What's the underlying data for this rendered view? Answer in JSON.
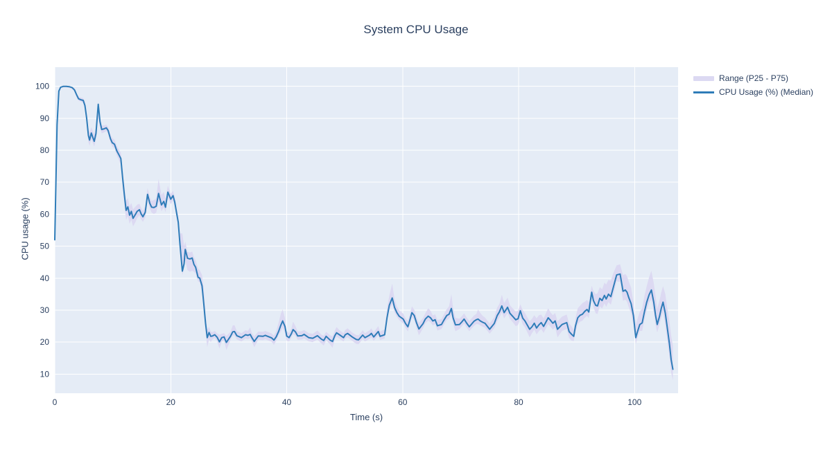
{
  "title": "System CPU Usage",
  "colors": {
    "line": "#2e7cb8",
    "band": "#dcd9f2",
    "plot_bg": "#e5ecf6",
    "grid": "#ffffff",
    "text": "#2a3f5f",
    "paper_bg": "#ffffff"
  },
  "legend": {
    "items": [
      {
        "label": "Range (P25 - P75)",
        "swatch": "band"
      },
      {
        "label": "CPU Usage (%) (Median)",
        "swatch": "line"
      }
    ]
  },
  "chart_data": {
    "type": "line",
    "title": "System CPU Usage",
    "xlabel": "Time (s)",
    "ylabel": "CPU usage (%)",
    "x_range": [
      0,
      107.5
    ],
    "y_range": [
      4,
      106
    ],
    "x_ticks": [
      0,
      20,
      40,
      60,
      80,
      100
    ],
    "y_ticks": [
      10,
      20,
      30,
      40,
      50,
      60,
      70,
      80,
      90,
      100
    ],
    "grid": true,
    "legend_position": "right-top-outside",
    "series": [
      {
        "name": "CPU Usage (%) (Median)",
        "x": [
          0,
          0.4,
          0.7,
          1,
          1.5,
          2,
          2.5,
          3,
          3.4,
          3.8,
          4.1,
          4.5,
          4.9,
          5.2,
          5.5,
          5.8,
          6,
          6.3,
          6.5,
          6.8,
          7.1,
          7.5,
          7.8,
          8.1,
          8.5,
          8.9,
          9.2,
          9.6,
          9.9,
          10.3,
          10.7,
          11,
          11.4,
          11.7,
          12,
          12.3,
          12.6,
          12.9,
          13.2,
          13.5,
          13.9,
          14.2,
          14.6,
          14.9,
          15.2,
          15.6,
          16,
          16.4,
          16.7,
          17.1,
          17.5,
          17.9,
          18.4,
          18.8,
          19.1,
          19.5,
          20,
          20.4,
          20.7,
          21,
          21.3,
          21.6,
          22,
          22.3,
          22.5,
          22.9,
          23.3,
          23.7,
          24,
          24.3,
          24.7,
          25,
          25.4,
          25.7,
          26,
          26.3,
          26.6,
          26.9,
          27.2,
          27.6,
          28,
          28.4,
          28.8,
          29.2,
          29.6,
          30.3,
          30.7,
          31,
          31.4,
          32.2,
          32.9,
          33.3,
          33.7,
          34,
          34.4,
          35.1,
          35.9,
          36.3,
          37.4,
          37.8,
          38.2,
          38.6,
          39,
          39.3,
          39.7,
          40,
          40.4,
          40.8,
          41.1,
          41.5,
          41.9,
          42.6,
          43,
          43.8,
          44.5,
          45.3,
          46,
          46.4,
          46.8,
          47.5,
          47.9,
          48.3,
          48.6,
          49,
          49.8,
          50.1,
          50.5,
          51.3,
          52,
          52.4,
          53.1,
          53.5,
          54.3,
          54.6,
          55,
          55.8,
          56.1,
          56.9,
          57.3,
          57.7,
          58.2,
          58.6,
          59,
          59.4,
          60.1,
          60.5,
          60.9,
          61.2,
          61.6,
          62,
          62.4,
          62.8,
          63.5,
          63.9,
          64.4,
          64.8,
          65.2,
          65.6,
          66,
          66.7,
          67.1,
          67.6,
          68,
          68.4,
          68.7,
          69.1,
          69.8,
          70.2,
          70.6,
          71,
          71.5,
          72.3,
          72.7,
          73,
          73.4,
          73.8,
          74.2,
          75,
          75.8,
          76.3,
          76.7,
          77.1,
          77.5,
          78.1,
          78.5,
          79,
          79.5,
          79.9,
          80.3,
          80.7,
          81.1,
          81.9,
          82.3,
          82.7,
          83.1,
          83.5,
          83.9,
          84.3,
          85.1,
          85.5,
          85.9,
          86.3,
          86.7,
          87.5,
          88.3,
          88.7,
          89.1,
          89.5,
          89.8,
          90.2,
          90.6,
          91,
          91.4,
          91.8,
          92.1,
          92.6,
          92.9,
          93.3,
          93.6,
          94,
          94.4,
          94.8,
          95.1,
          95.5,
          95.9,
          96.3,
          96.9,
          97.5,
          98,
          98.4,
          98.7,
          99,
          99.4,
          99.8,
          100.2,
          100.5,
          100.9,
          101.3,
          101.7,
          102.1,
          102.5,
          102.9,
          103.3,
          103.6,
          103.9,
          104.3,
          104.6,
          104.9,
          105.3,
          105.6,
          106,
          106.3,
          106.6
        ],
        "y": [
          52,
          88,
          98.5,
          99.7,
          100,
          100,
          99.9,
          99.6,
          98.9,
          97.2,
          96.1,
          95.8,
          95.6,
          94,
          90,
          84.6,
          83.2,
          85.4,
          84.3,
          82.8,
          85.2,
          94.4,
          89,
          86.5,
          86.7,
          87,
          86.2,
          83.6,
          82.4,
          81.9,
          79.8,
          78.8,
          77.4,
          71.5,
          66,
          61.2,
          62.3,
          59.7,
          60.9,
          58.7,
          59.9,
          60.9,
          61.4,
          60.1,
          59.2,
          60.6,
          66.2,
          63.4,
          62.2,
          62.1,
          62.5,
          66.5,
          62.9,
          64,
          62.2,
          66.9,
          64.7,
          65.8,
          63.7,
          60.5,
          57.5,
          50.5,
          42.2,
          44.5,
          49,
          46.2,
          46,
          46.3,
          44.3,
          43.4,
          40.3,
          40,
          37.6,
          32,
          26,
          21.4,
          23,
          21.8,
          21.9,
          22.3,
          21.5,
          20.1,
          21.4,
          21.6,
          19.9,
          21.8,
          23.2,
          23.3,
          22,
          21.4,
          22.3,
          22.1,
          22.4,
          21.4,
          20.2,
          21.9,
          21.8,
          22.1,
          21.3,
          20.6,
          21.7,
          23.3,
          25.3,
          26.6,
          24.9,
          21.9,
          21.4,
          22.6,
          23.9,
          23.2,
          21.9,
          22,
          22.4,
          21.4,
          21.2,
          22,
          20.9,
          20.5,
          21.8,
          20.6,
          20.2,
          22,
          22.9,
          22.4,
          21.4,
          22.3,
          22.7,
          21.6,
          20.8,
          20.7,
          22.2,
          21.4,
          22.2,
          22.7,
          21.6,
          23.3,
          21.8,
          22.3,
          27.6,
          31.5,
          33.8,
          30.8,
          29.2,
          28.1,
          27.2,
          25.8,
          24.8,
          26.6,
          29.2,
          28.3,
          26,
          24.1,
          25.7,
          27.2,
          28.1,
          27.6,
          26.6,
          27,
          25.1,
          25.5,
          26.8,
          28.3,
          28.7,
          30.5,
          27.6,
          25.4,
          25.5,
          26.3,
          27.2,
          26,
          24.8,
          26.5,
          27,
          27.2,
          26.6,
          26.2,
          25.9,
          24,
          25.8,
          28.3,
          29.5,
          31.3,
          29.2,
          30.9,
          29,
          28,
          27,
          27.3,
          29.8,
          27.5,
          26.6,
          24,
          24.8,
          25.9,
          24.4,
          25.4,
          26.1,
          24.9,
          27.6,
          26.8,
          25.9,
          26.6,
          24,
          25.5,
          26.1,
          23.3,
          22.5,
          21.8,
          25,
          27.6,
          28.4,
          28.7,
          29.6,
          30.2,
          29.4,
          35.6,
          33,
          31.5,
          31.3,
          33.7,
          33,
          34.6,
          33.5,
          35,
          34.2,
          36.9,
          41,
          41.3,
          35.9,
          36.3,
          35.6,
          33.9,
          32,
          28.3,
          21.4,
          23.3,
          25.5,
          26,
          29.5,
          32.5,
          34.8,
          36.3,
          32.5,
          28.5,
          25.5,
          28,
          30.5,
          32.5,
          29,
          25,
          19.5,
          14.5,
          11.5
        ]
      }
    ],
    "band": {
      "name": "Range (P25 - P75)",
      "x_ref": "series.0.x",
      "p25": [
        51.5,
        87,
        98,
        99.4,
        99.7,
        99.7,
        99.5,
        99.2,
        98.3,
        96.4,
        95.5,
        95.2,
        94.8,
        92.6,
        88,
        82.6,
        81.4,
        83.6,
        82.6,
        81.2,
        83.4,
        90.5,
        87,
        85.3,
        85.6,
        86,
        85.2,
        82.4,
        81.2,
        80.6,
        78.4,
        77.2,
        75.6,
        68.5,
        63,
        58.2,
        59.5,
        57,
        58.2,
        56.2,
        57.5,
        58.8,
        59.6,
        58.4,
        57.6,
        59,
        64.4,
        61.8,
        60.5,
        60.1,
        60.5,
        64,
        60.9,
        62.2,
        60.6,
        65,
        63.2,
        64.3,
        62.2,
        59,
        55.8,
        48.8,
        41,
        43,
        45.5,
        42.5,
        42,
        42.3,
        42,
        41.4,
        39,
        38.7,
        35.6,
        29.5,
        23.5,
        18.4,
        20.8,
        20,
        20.9,
        21.3,
        20.3,
        17.9,
        20.2,
        20.4,
        17.5,
        20.6,
        22,
        22.1,
        20.8,
        20.2,
        21.1,
        20.9,
        21.2,
        20.2,
        18.4,
        20.7,
        20.6,
        20.9,
        20.1,
        19.1,
        20.5,
        22.1,
        23.3,
        24.6,
        22.9,
        20.4,
        20.2,
        21.4,
        22.5,
        22,
        20.7,
        20.8,
        21.2,
        20.2,
        20,
        20.8,
        19.5,
        18.9,
        20.6,
        19.2,
        18.2,
        20.8,
        21.7,
        21.2,
        20.2,
        21.1,
        21.5,
        20.4,
        19.4,
        19.3,
        21,
        20.2,
        21,
        21.5,
        20.4,
        22.1,
        20.6,
        21.1,
        26.6,
        30,
        31.8,
        29.3,
        27.9,
        26.9,
        25.8,
        24.4,
        23.3,
        25.2,
        27.8,
        26.9,
        24.4,
        22.1,
        24.3,
        25.8,
        26.7,
        26.2,
        25.2,
        25.6,
        23.6,
        24.1,
        25.4,
        26.9,
        27.3,
        28.5,
        25.8,
        23.4,
        24.1,
        24.9,
        25.8,
        24.6,
        23.4,
        25.1,
        25.6,
        25.6,
        25.2,
        24.8,
        24.5,
        22.6,
        24.4,
        26.5,
        27.7,
        29.3,
        27.4,
        29.1,
        27.2,
        26.2,
        25,
        25.3,
        27.8,
        25.5,
        24.6,
        21.5,
        22.8,
        23.9,
        22.4,
        23.4,
        24.1,
        22.9,
        25.6,
        24.8,
        23.9,
        24.6,
        21.5,
        23.5,
        24.1,
        21.3,
        20.5,
        20.3,
        23,
        25.6,
        26.4,
        26.7,
        27.6,
        28.2,
        27.4,
        33.6,
        31,
        29,
        28.8,
        31.2,
        30.5,
        32.1,
        31,
        32.5,
        31.7,
        34.4,
        39,
        38.8,
        32.9,
        33.3,
        32.6,
        30.9,
        29,
        25.3,
        19.4,
        21.3,
        23.5,
        23.5,
        27,
        30,
        32.3,
        33.3,
        29.5,
        25.5,
        23,
        25.5,
        27.5,
        29.5,
        25,
        21,
        15.5,
        10.5,
        8
      ],
      "p75": [
        52.5,
        88.5,
        99,
        100,
        100,
        100,
        100,
        99.9,
        99.4,
        97.8,
        96.8,
        96.5,
        96.3,
        95.2,
        92,
        87,
        85.6,
        87.2,
        86.3,
        85,
        87,
        95.2,
        90.5,
        87.7,
        87.8,
        88,
        87.3,
        85,
        83.8,
        83.3,
        81.4,
        80.4,
        79.2,
        74,
        69,
        64.2,
        65.1,
        62.5,
        63.5,
        61.5,
        62.3,
        63,
        63.3,
        62,
        61,
        62.4,
        68.2,
        65.3,
        64.2,
        64.4,
        65,
        71,
        66,
        67,
        64.8,
        68.9,
        66.4,
        67.3,
        65.3,
        62.2,
        59.5,
        54,
        54,
        50,
        51.5,
        48.2,
        48,
        48.3,
        46.5,
        45.6,
        43,
        42.5,
        41,
        36.5,
        29,
        23.9,
        24.8,
        23.3,
        23.1,
        23.5,
        22.7,
        22.3,
        22.6,
        22.8,
        21.9,
        23.2,
        25.2,
        25.3,
        23.4,
        22.8,
        23.7,
        23.5,
        24.6,
        22.8,
        21.8,
        23.3,
        23.2,
        23.5,
        22.7,
        22,
        23.5,
        26,
        28.9,
        30.2,
        27.5,
        23.4,
        22.8,
        24.2,
        26.4,
        25,
        23.3,
        23.4,
        23.8,
        22.8,
        22.6,
        23.6,
        22.3,
        22,
        23.2,
        22.1,
        21.8,
        23.6,
        24.7,
        23.9,
        22.8,
        23.8,
        24.3,
        23,
        22.2,
        22.1,
        23.7,
        22.8,
        23.7,
        24.3,
        23,
        25,
        23.3,
        24,
        30.6,
        34.5,
        38.3,
        33.3,
        31.2,
        29.9,
        28.9,
        27.4,
        26.6,
        28.4,
        31.2,
        30.1,
        27.8,
        26,
        27.5,
        29,
        30.6,
        29.8,
        28.3,
        28.7,
        26.9,
        27.2,
        28.6,
        30.3,
        31.2,
        35,
        30.6,
        27.6,
        27.3,
        28.1,
        29,
        27.8,
        26.6,
        28.3,
        28.8,
        30.2,
        29.1,
        28.2,
        27.7,
        25.8,
        27.8,
        30.8,
        32,
        34.8,
        32.2,
        33.9,
        31.5,
        30.5,
        29.5,
        29.8,
        31.8,
        30,
        29.1,
        26.5,
        27.3,
        28.4,
        27.4,
        28.4,
        28.6,
        27.4,
        30.6,
        29.3,
        28.4,
        29.1,
        26.5,
        28,
        28.6,
        25.8,
        25,
        23.8,
        27.5,
        30.6,
        31.4,
        32.2,
        32.6,
        33.2,
        32.4,
        37.6,
        36,
        35,
        35.3,
        37.2,
        36.5,
        38.6,
        38,
        39.5,
        39.2,
        41.4,
        44,
        44.3,
        40.9,
        41.3,
        40.6,
        38.9,
        37,
        32.3,
        25.4,
        27.3,
        29.5,
        30.5,
        34.5,
        37.5,
        40.3,
        42.3,
        38.5,
        34.5,
        30.5,
        33,
        35.5,
        37.5,
        35,
        31,
        26.5,
        22,
        19
      ]
    }
  }
}
